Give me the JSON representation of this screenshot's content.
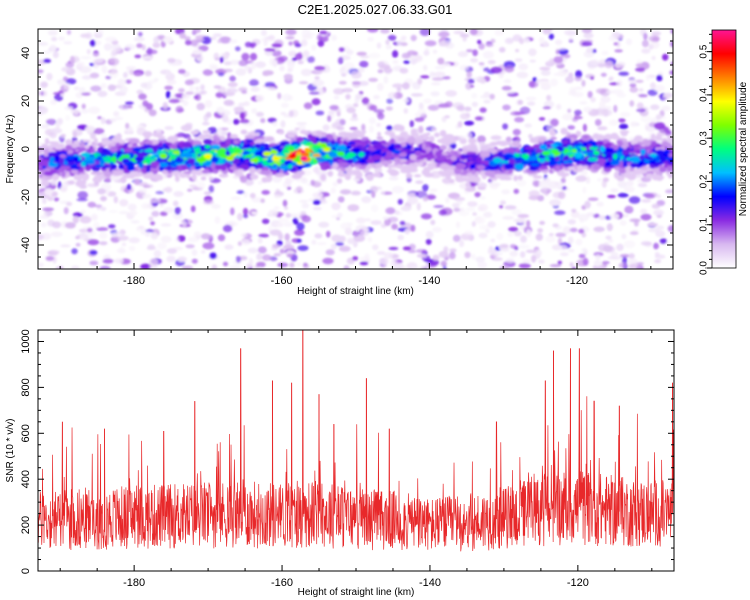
{
  "title": "C2E1.2025.027.06.33.G01",
  "chart_data": [
    {
      "type": "heatmap",
      "title": "C2E1.2025.027.06.33.G01",
      "xlabel": "Height of straight line (km)",
      "ylabel": "Frequency (Hz)",
      "xlim": [
        -193,
        -107
      ],
      "ylim": [
        -50,
        50
      ],
      "xticks": [
        -180,
        -160,
        -140,
        -120
      ],
      "yticks": [
        -40,
        -20,
        0,
        20,
        40
      ],
      "colorbar": {
        "label": "Normalized spectral amplitude",
        "range": [
          0,
          0.55
        ],
        "ticks": [
          0.0,
          0.1,
          0.2,
          0.3,
          0.4,
          0.5
        ],
        "colormap": [
          "#ffffff",
          "#d8b8f0",
          "#8a2be2",
          "#0000ff",
          "#00bfff",
          "#00ff7f",
          "#7fff00",
          "#ffff00",
          "#ff8000",
          "#ff0000",
          "#ff1493"
        ]
      },
      "band": {
        "center_frequency_hz": [
          [
            -193,
            -6
          ],
          [
            -185,
            -4
          ],
          [
            -175,
            -3
          ],
          [
            -165,
            -2
          ],
          [
            -160,
            -4
          ],
          [
            -155,
            -1
          ],
          [
            -150,
            -2
          ],
          [
            -145,
            -1
          ],
          [
            -140,
            -1
          ],
          [
            -135,
            -6
          ],
          [
            -130,
            -5
          ],
          [
            -125,
            -3
          ],
          [
            -120,
            -1
          ],
          [
            -115,
            -3
          ],
          [
            -110,
            -3
          ],
          [
            -107,
            -4
          ]
        ],
        "peak_amplitude": [
          [
            -193,
            0.18
          ],
          [
            -188,
            0.22
          ],
          [
            -180,
            0.28
          ],
          [
            -175,
            0.32
          ],
          [
            -170,
            0.35
          ],
          [
            -165,
            0.33
          ],
          [
            -160,
            0.38
          ],
          [
            -157,
            0.55
          ],
          [
            -153,
            0.3
          ],
          [
            -148,
            0.22
          ],
          [
            -143,
            0.15
          ],
          [
            -138,
            0.12
          ],
          [
            -133,
            0.17
          ],
          [
            -128,
            0.27
          ],
          [
            -123,
            0.3
          ],
          [
            -118,
            0.28
          ],
          [
            -113,
            0.22
          ],
          [
            -107,
            0.2
          ]
        ]
      }
    },
    {
      "type": "line",
      "xlabel": "Height of straight line (km)",
      "ylabel": "SNR (10 * v/v)",
      "xlim": [
        -193,
        -107
      ],
      "ylim": [
        0,
        1050
      ],
      "xticks": [
        -180,
        -160,
        -140,
        -120
      ],
      "yticks": [
        0,
        200,
        400,
        600,
        800,
        1000
      ],
      "series": [
        {
          "color": "#e8282a",
          "baseline": [
            [
              -193,
              220
            ],
            [
              -185,
              230
            ],
            [
              -175,
              240
            ],
            [
              -165,
              250
            ],
            [
              -160,
              240
            ],
            [
              -155,
              250
            ],
            [
              -150,
              230
            ],
            [
              -145,
              220
            ],
            [
              -140,
              200
            ],
            [
              -135,
              210
            ],
            [
              -130,
              230
            ],
            [
              -125,
              270
            ],
            [
              -120,
              280
            ],
            [
              -115,
              260
            ],
            [
              -110,
              250
            ],
            [
              -107,
              250
            ]
          ],
          "spikes": [
            [
              -165.6,
              970
            ],
            [
              -157.2,
              1050
            ],
            [
              -161.3,
              830
            ],
            [
              -158.7,
              820
            ],
            [
              -148.6,
              840
            ],
            [
              -171.8,
              740
            ],
            [
              -124.4,
              830
            ],
            [
              -123.3,
              960
            ],
            [
              -121.0,
              970
            ],
            [
              -119.8,
              970
            ],
            [
              -117.8,
              740
            ],
            [
              -114.4,
              720
            ],
            [
              -107.2,
              820
            ],
            [
              -189.7,
              650
            ],
            [
              -155.0,
              770
            ],
            [
              -153.0,
              640
            ],
            [
              -145.5,
              620
            ],
            [
              -131.0,
              650
            ],
            [
              -176.0,
              610
            ],
            [
              -184.0,
              620
            ]
          ]
        }
      ]
    }
  ]
}
